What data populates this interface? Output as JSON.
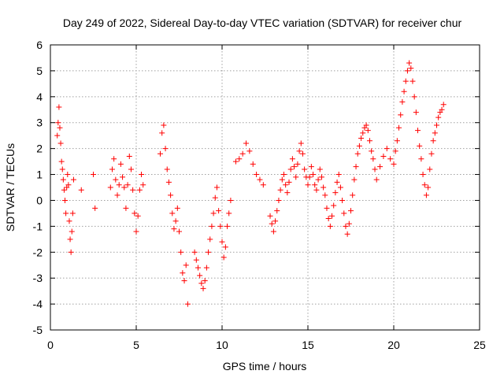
{
  "chart_data": {
    "type": "scatter",
    "title": "Day 249 of 2022, Sidereal Day-to-day VTEC variation (SDTVAR) for receiver chur",
    "xlabel": "GPS time / hours",
    "ylabel": "SDTVAR / TECUs",
    "xlim": [
      0,
      25
    ],
    "ylim": [
      -5,
      6
    ],
    "x_ticks": [
      0,
      5,
      10,
      15,
      20,
      25
    ],
    "y_ticks": [
      -5,
      -4,
      -3,
      -2,
      -1,
      0,
      1,
      2,
      3,
      4,
      5,
      6
    ],
    "x_tick_labels": [
      "0",
      "5",
      "10",
      "15",
      "20",
      "25"
    ],
    "y_tick_labels": [
      "-5",
      "-4",
      "-3",
      "-2",
      "-1",
      "0",
      "1",
      "2",
      "3",
      "4",
      "5",
      "6"
    ],
    "grid": true,
    "marker": "+",
    "color": "#ff0000",
    "series": [
      {
        "name": "SDTVAR",
        "x": [
          0.4,
          0.45,
          0.5,
          0.55,
          0.6,
          0.65,
          0.7,
          0.75,
          0.8,
          0.85,
          0.9,
          0.95,
          1.0,
          1.05,
          1.1,
          1.15,
          1.2,
          1.25,
          1.3,
          1.35,
          1.8,
          2.5,
          2.6,
          3.5,
          3.6,
          3.7,
          3.8,
          3.9,
          4.0,
          4.1,
          4.2,
          4.3,
          4.4,
          4.5,
          4.6,
          4.7,
          4.8,
          4.9,
          5.0,
          5.1,
          5.2,
          5.3,
          5.4,
          6.4,
          6.5,
          6.6,
          6.7,
          6.8,
          6.9,
          7.0,
          7.1,
          7.2,
          7.3,
          7.4,
          7.5,
          7.6,
          7.7,
          7.8,
          7.9,
          8.0,
          8.4,
          8.5,
          8.6,
          8.7,
          8.8,
          8.9,
          9.0,
          9.1,
          9.2,
          9.3,
          9.4,
          9.5,
          9.6,
          9.7,
          9.8,
          9.9,
          10.0,
          10.1,
          10.2,
          10.3,
          10.4,
          10.5,
          10.8,
          11.0,
          11.2,
          11.4,
          11.6,
          11.8,
          12.0,
          12.2,
          12.4,
          12.8,
          12.9,
          13.0,
          13.1,
          13.2,
          13.3,
          13.4,
          13.5,
          13.6,
          13.7,
          13.8,
          13.9,
          14.0,
          14.1,
          14.2,
          14.3,
          14.4,
          14.5,
          14.6,
          14.7,
          14.8,
          14.9,
          15.0,
          15.1,
          15.2,
          15.3,
          15.4,
          15.5,
          15.6,
          15.7,
          15.8,
          15.9,
          16.0,
          16.1,
          16.2,
          16.3,
          16.4,
          16.5,
          16.6,
          16.7,
          16.8,
          16.9,
          17.0,
          17.1,
          17.2,
          17.3,
          17.4,
          17.5,
          17.6,
          17.7,
          17.8,
          17.9,
          18.0,
          18.1,
          18.2,
          18.3,
          18.4,
          18.5,
          18.6,
          18.7,
          18.8,
          18.9,
          19.0,
          19.2,
          19.4,
          19.6,
          19.8,
          20.0,
          20.1,
          20.2,
          20.3,
          20.4,
          20.5,
          20.6,
          20.7,
          20.8,
          20.9,
          21.0,
          21.1,
          21.2,
          21.3,
          21.4,
          21.5,
          21.6,
          21.7,
          21.8,
          21.9,
          22.0,
          22.1,
          22.2,
          22.3,
          22.4,
          22.5,
          22.6,
          22.7,
          22.8,
          22.9
        ],
        "y": [
          2.5,
          3.0,
          3.6,
          2.8,
          2.2,
          1.5,
          1.2,
          0.8,
          0.4,
          0.0,
          -0.5,
          0.5,
          1.0,
          0.6,
          -0.8,
          -1.5,
          -2.0,
          -1.2,
          -0.5,
          0.8,
          0.4,
          1.0,
          -0.3,
          0.5,
          1.2,
          1.6,
          0.8,
          0.2,
          0.6,
          1.4,
          0.9,
          0.5,
          -0.3,
          0.6,
          1.7,
          1.2,
          0.4,
          -0.5,
          -1.2,
          -0.6,
          0.4,
          1.0,
          0.6,
          1.8,
          2.6,
          2.9,
          2.0,
          1.2,
          0.7,
          0.2,
          -0.5,
          -1.1,
          -0.8,
          -0.3,
          -1.2,
          -2.0,
          -2.8,
          -3.1,
          -2.5,
          -4.0,
          -2.0,
          -2.3,
          -2.6,
          -2.9,
          -3.2,
          -3.4,
          -3.1,
          -2.6,
          -2.0,
          -1.5,
          -1.0,
          -0.5,
          0.1,
          0.5,
          -0.4,
          -1.0,
          -1.6,
          -2.2,
          -1.8,
          -1.0,
          -0.5,
          0.0,
          1.5,
          1.6,
          1.8,
          2.2,
          1.9,
          1.4,
          1.0,
          0.8,
          0.6,
          -0.6,
          -0.9,
          -1.2,
          -0.8,
          -0.4,
          0.0,
          0.4,
          0.8,
          1.0,
          0.6,
          0.3,
          0.7,
          1.2,
          1.6,
          1.3,
          0.9,
          1.4,
          1.9,
          2.2,
          1.8,
          1.2,
          0.9,
          0.6,
          0.9,
          1.3,
          1.0,
          0.6,
          0.4,
          0.8,
          1.2,
          0.9,
          0.5,
          0.2,
          -0.3,
          -0.7,
          -1.0,
          -0.6,
          -0.2,
          0.3,
          0.7,
          1.0,
          0.5,
          0.0,
          -0.5,
          -1.0,
          -1.3,
          -0.9,
          -0.4,
          0.2,
          0.8,
          1.3,
          1.8,
          2.1,
          2.4,
          2.6,
          2.8,
          2.9,
          2.7,
          2.3,
          1.9,
          1.6,
          1.2,
          0.8,
          1.3,
          1.7,
          2.0,
          1.6,
          1.4,
          1.9,
          2.3,
          2.8,
          3.3,
          3.8,
          4.2,
          4.6,
          5.0,
          5.3,
          5.1,
          4.6,
          4.0,
          3.4,
          2.7,
          2.1,
          1.6,
          1.0,
          0.6,
          0.2,
          0.5,
          1.2,
          1.8,
          2.3,
          2.6,
          2.9,
          3.2,
          3.4,
          3.5,
          3.7
        ]
      }
    ]
  }
}
